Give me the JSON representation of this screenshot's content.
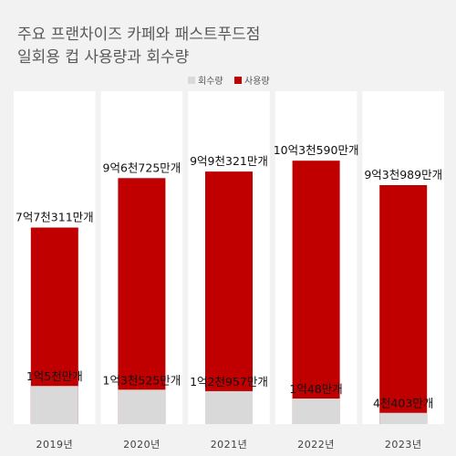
{
  "title_line1": "주요 프랜차이즈 카페와 패스트푸드점",
  "title_line2": "일회용 컵 사용량과 회수량",
  "colors": {
    "background": "#f2f2f2",
    "panel": "#ffffff",
    "usage": "#c00000",
    "collection": "#d9d9d9"
  },
  "chart_data": {
    "type": "bar",
    "stacked": false,
    "overlapped": true,
    "legend_position": "top-center",
    "grid": false,
    "unit": "개",
    "categories": [
      "2019년",
      "2020년",
      "2021년",
      "2022년",
      "2023년"
    ],
    "series": [
      {
        "name": "회수량",
        "color": "#d9d9d9",
        "values": [
          150000000,
          135250000,
          129570000,
          100480000,
          44030000
        ],
        "labels": [
          "1억5천만개",
          "1억3천525만개",
          "1억2천957만개",
          "1억48만개",
          "4천403만개"
        ]
      },
      {
        "name": "사용량",
        "color": "#c00000",
        "values": [
          773110000,
          967250000,
          993210000,
          1035900000,
          939890000
        ],
        "labels": [
          "7억7천311만개",
          "9억6천725만개",
          "9억9천321만개",
          "10억3천590만개",
          "9억3천989만개"
        ]
      }
    ]
  }
}
